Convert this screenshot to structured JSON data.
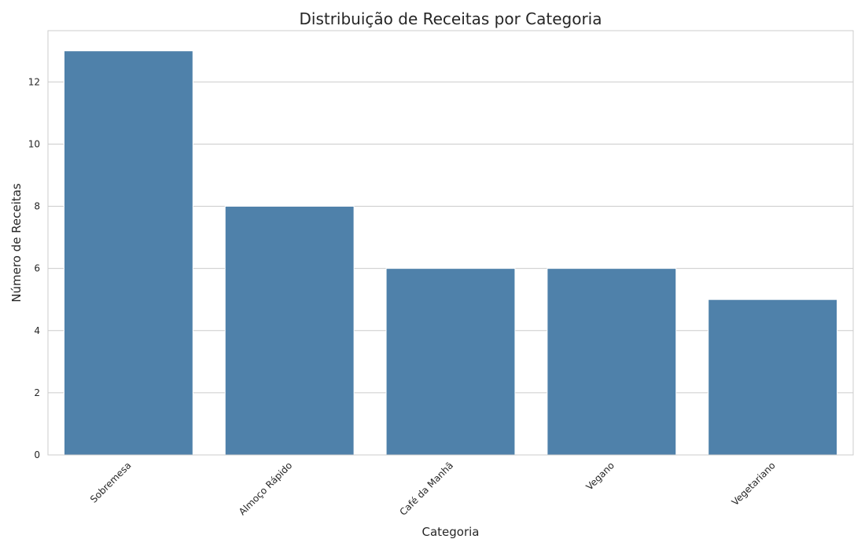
{
  "chart_data": {
    "type": "bar",
    "title": "Distribuição de Receitas por Categoria",
    "xlabel": "Categoria",
    "ylabel": "Número de Receitas",
    "categories": [
      "Sobremesa",
      "Almoço Rápido",
      "Café da Manhã",
      "Vegano",
      "Vegetariano"
    ],
    "values": [
      13,
      8,
      6,
      6,
      5
    ],
    "ylim": [
      0,
      13.65
    ],
    "yticks": [
      0,
      2,
      4,
      6,
      8,
      10,
      12
    ],
    "grid": true,
    "x_tick_rotation": -45,
    "bar_color": "#4f81aa",
    "grid_color": "#cccccc",
    "text_color": "#262626"
  }
}
